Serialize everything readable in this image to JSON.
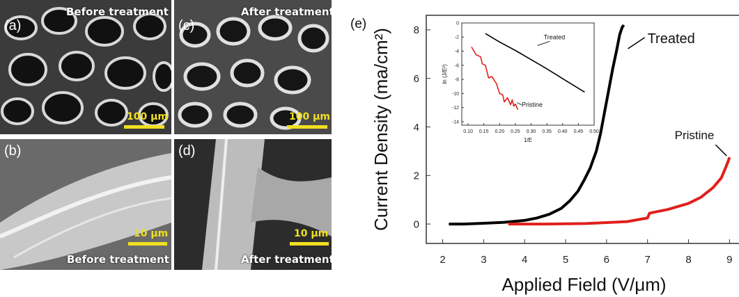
{
  "panels": [
    {
      "id": "a",
      "label": "(a)",
      "caption": "Before treatment",
      "scale": "100 μm"
    },
    {
      "id": "c",
      "label": "(c)",
      "caption": "After treatment",
      "scale": "100 μm"
    },
    {
      "id": "b",
      "label": "(b)",
      "caption": "Before treatment",
      "scale": "10 μm"
    },
    {
      "id": "d",
      "label": "(d)",
      "caption": "After treatment",
      "scale": "10 μm"
    }
  ],
  "chart_label": "(e)",
  "colors": {
    "treated": "#000000",
    "pristine": "#e0201c",
    "scale": "#f0e020"
  },
  "chart_data": [
    {
      "type": "line",
      "xlabel": "Applied Field (V/μm)",
      "ylabel": "Current Density (ma/cm²)",
      "xlim": [
        1.6,
        9.3
      ],
      "ylim": [
        -0.8,
        8.6
      ],
      "xticks": [
        2,
        3,
        4,
        5,
        6,
        7,
        8,
        9
      ],
      "yticks": [
        0,
        2,
        4,
        6,
        8
      ],
      "series": [
        {
          "name": "Treated",
          "color": "#000000",
          "x": [
            2.15,
            2.5,
            3.0,
            3.5,
            4.0,
            4.3,
            4.6,
            4.9,
            5.1,
            5.3,
            5.45,
            5.6,
            5.75,
            5.85,
            5.95,
            6.05,
            6.15,
            6.25,
            6.32,
            6.38,
            6.42
          ],
          "y": [
            0.0,
            0.0,
            0.03,
            0.07,
            0.15,
            0.25,
            0.4,
            0.65,
            0.95,
            1.35,
            1.8,
            2.3,
            3.0,
            3.7,
            4.6,
            5.5,
            6.4,
            7.2,
            7.8,
            8.1,
            8.2
          ]
        },
        {
          "name": "Pristine",
          "color": "#e0201c",
          "x": [
            3.6,
            4.5,
            5.5,
            6.5,
            7.0,
            7.05,
            7.5,
            8.0,
            8.3,
            8.6,
            8.8,
            8.9,
            8.97,
            9.0
          ],
          "y": [
            0.0,
            0.0,
            0.02,
            0.1,
            0.25,
            0.45,
            0.6,
            0.85,
            1.1,
            1.5,
            1.9,
            2.3,
            2.6,
            2.75
          ]
        }
      ],
      "annotations": [
        "Treated",
        "Pristine"
      ]
    },
    {
      "type": "line",
      "xlabel": "1/E",
      "ylabel": "ln (J/E²)",
      "xlim": [
        0.08,
        0.5
      ],
      "ylim": [
        -14.5,
        0
      ],
      "xticks": [
        0.1,
        0.15,
        0.2,
        0.25,
        0.3,
        0.35,
        0.4,
        0.45,
        0.5
      ],
      "yticks": [
        0,
        -2,
        -4,
        -6,
        -8,
        -10,
        -12,
        -14
      ],
      "series": [
        {
          "name": "Treated",
          "color": "#000000",
          "x": [
            0.155,
            0.2,
            0.25,
            0.3,
            0.35,
            0.4,
            0.44,
            0.47
          ],
          "y": [
            -1.5,
            -2.7,
            -3.9,
            -5.2,
            -6.5,
            -7.9,
            -9.0,
            -9.8
          ]
        },
        {
          "name": "Pristine",
          "color": "#e0201c",
          "x": [
            0.111,
            0.125,
            0.14,
            0.145,
            0.155,
            0.165,
            0.175,
            0.19,
            0.2,
            0.21,
            0.215,
            0.225,
            0.235,
            0.24,
            0.245,
            0.25,
            0.255,
            0.258
          ],
          "y": [
            -3.4,
            -4.5,
            -4.8,
            -5.8,
            -6.0,
            -7.8,
            -7.6,
            -8.6,
            -10.0,
            -10.2,
            -11.2,
            -10.6,
            -11.6,
            -10.9,
            -11.8,
            -11.5,
            -12.0,
            -12.3
          ]
        }
      ],
      "annotations": [
        "Treated",
        "Pristine"
      ]
    }
  ]
}
